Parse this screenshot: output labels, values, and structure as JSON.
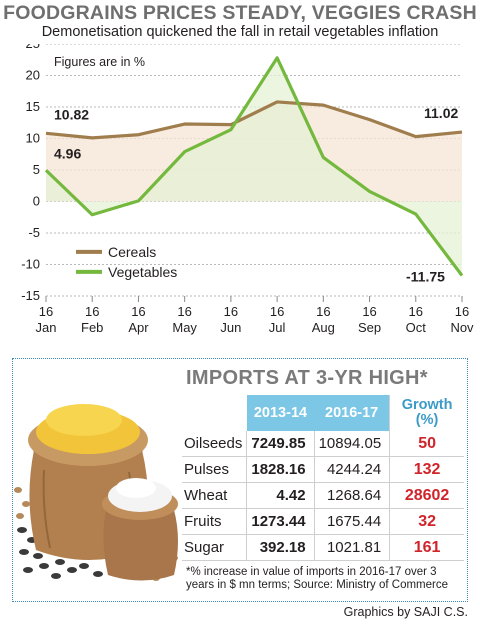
{
  "header": {
    "title": "FOODGRAINS PRICES STEADY, VEGGIES CRASH",
    "subtitle": "Demonetisation quickened the fall in retail vegetables inflation"
  },
  "chart_data": {
    "type": "line",
    "note": "Figures are in %",
    "categories": [
      "16 Jan",
      "16 Feb",
      "16 Apr",
      "16 May",
      "16 Jun",
      "16 Jul",
      "16 Aug",
      "16 Sep",
      "16 Oct",
      "16 Nov"
    ],
    "series": [
      {
        "name": "Cereals",
        "color": "#a07d4c",
        "values": [
          10.82,
          10.1,
          10.6,
          12.3,
          12.2,
          15.8,
          15.3,
          13.0,
          10.3,
          11.02
        ]
      },
      {
        "name": "Vegetables",
        "color": "#74b83d",
        "values": [
          4.96,
          -2.1,
          0.1,
          7.9,
          11.4,
          22.8,
          7.0,
          1.6,
          -2.0,
          -11.75
        ]
      }
    ],
    "labels": [
      {
        "text": "10.82",
        "series": "Cereals",
        "index": 0
      },
      {
        "text": "4.96",
        "series": "Vegetables",
        "index": 0
      },
      {
        "text": "11.02",
        "series": "Cereals",
        "index": 9
      },
      {
        "text": "-11.75",
        "series": "Vegetables",
        "index": 9
      }
    ],
    "ylim": [
      -15,
      25
    ],
    "yticks": [
      25,
      20,
      15,
      10,
      5,
      0,
      -5,
      -10,
      -15
    ],
    "grid": true,
    "legend": "bottom-left",
    "xlabel": "",
    "ylabel": ""
  },
  "imports": {
    "title": "IMPORTS AT 3-YR HIGH*",
    "columns": [
      "",
      "2013-14",
      "2016-17",
      "Growth (%)"
    ],
    "rows": [
      {
        "item": "Oilseeds",
        "y2013": "7249.85",
        "y2016": "10894.05",
        "growth": "50"
      },
      {
        "item": "Pulses",
        "y2013": "1828.16",
        "y2016": "4244.24",
        "growth": "132"
      },
      {
        "item": "Wheat",
        "y2013": "4.42",
        "y2016": "1268.64",
        "growth": "28602"
      },
      {
        "item": "Fruits",
        "y2013": "1273.44",
        "y2016": "1675.44",
        "growth": "32"
      },
      {
        "item": "Sugar",
        "y2013": "392.18",
        "y2016": "1021.81",
        "growth": "161"
      }
    ],
    "footnote": "*% increase in value of imports in 2016-17 over 3 years in $ mn terms; Source: Ministry of Commerce"
  },
  "credit": "Graphics by SAJI C.S."
}
